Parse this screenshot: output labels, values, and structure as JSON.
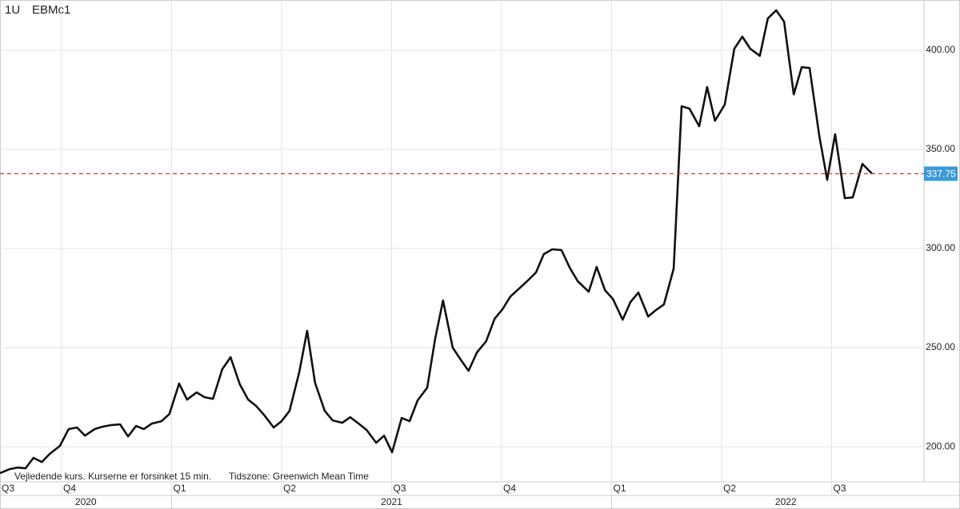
{
  "chart_data": {
    "type": "line",
    "interval": "1U",
    "symbol": "EBMc1",
    "notes": [
      "Vejledende kurs. Kurserne er forsinket 15 min.",
      "Tidszone: Greenwich Mean Time"
    ],
    "x": [
      2020.61,
      2020.632,
      2020.65,
      2020.668,
      2020.686,
      2020.705,
      2020.723,
      2020.746,
      2020.766,
      2020.785,
      2020.803,
      2020.825,
      2020.843,
      2020.861,
      2020.883,
      2020.901,
      2020.919,
      2020.937,
      2020.955,
      2020.977,
      2020.995,
      2021.017,
      2021.035,
      2021.057,
      2021.075,
      2021.094,
      2021.115,
      2021.134,
      2021.155,
      2021.174,
      2021.192,
      2021.21,
      2021.232,
      2021.25,
      2021.268,
      2021.29,
      2021.308,
      2021.326,
      2021.348,
      2021.366,
      2021.388,
      2021.406,
      2021.425,
      2021.443,
      2021.465,
      2021.483,
      2021.501,
      2021.523,
      2021.541,
      2021.559,
      2021.581,
      2021.599,
      2021.617,
      2021.639,
      2021.657,
      2021.675,
      2021.694,
      2021.715,
      2021.734,
      2021.752,
      2021.77,
      2021.788,
      2021.806,
      2021.828,
      2021.846,
      2021.865,
      2021.886,
      2021.905,
      2021.923,
      2021.948,
      2021.966,
      2021.985,
      2022.003,
      2022.025,
      2022.043,
      2022.061,
      2022.083,
      2022.101,
      2022.119,
      2022.141,
      2022.159,
      2022.177,
      2022.199,
      2022.217,
      2022.235,
      2022.257,
      2022.279,
      2022.297,
      2022.315,
      2022.337,
      2022.355,
      2022.374,
      2022.392,
      2022.414,
      2022.432,
      2022.45,
      2022.472,
      2022.49,
      2022.508,
      2022.53,
      2022.548,
      2022.57,
      2022.592
    ],
    "series": [
      {
        "color": "#111111",
        "values": [
          186.7,
          188.7,
          189.5,
          189.1,
          194.4,
          192.3,
          196.4,
          200.4,
          208.9,
          209.7,
          205.6,
          208.9,
          210.1,
          210.9,
          211.3,
          205.2,
          210.5,
          208.9,
          211.7,
          212.9,
          216.5,
          231.9,
          223.8,
          227.4,
          225.0,
          224.2,
          239.1,
          245.2,
          231.5,
          223.8,
          220.6,
          216.1,
          209.7,
          212.9,
          218.1,
          237.5,
          258.5,
          232.3,
          218.1,
          213.3,
          212.1,
          214.9,
          211.7,
          208.5,
          202.0,
          205.6,
          197.2,
          214.5,
          212.9,
          223.4,
          229.8,
          254.4,
          273.8,
          250.0,
          244.0,
          238.3,
          247.6,
          253.2,
          264.5,
          269.4,
          275.8,
          279.4,
          283.1,
          287.9,
          297.2,
          299.6,
          299.2,
          290.3,
          283.5,
          278.2,
          290.7,
          279.0,
          274.6,
          264.1,
          273.0,
          277.8,
          265.7,
          269.0,
          271.8,
          289.9,
          371.8,
          370.6,
          361.7,
          381.5,
          364.5,
          372.6,
          400.8,
          406.9,
          400.8,
          397.2,
          416.1,
          420.2,
          414.5,
          377.8,
          391.5,
          391.1,
          356.9,
          334.7,
          357.7,
          325.4,
          325.8,
          342.7,
          337.75
        ]
      }
    ],
    "last_value": 337.75,
    "last_color": "#d9342b",
    "last_label_color": "#3a9ad9",
    "xlim": [
      2020.61,
      2022.71
    ],
    "xticks": [
      {
        "value": 2020.5,
        "label": "Q3"
      },
      {
        "value": 2020.75,
        "label": "Q4"
      },
      {
        "value": 2021,
        "label": "Q1"
      },
      {
        "value": 2021.25,
        "label": "Q2"
      },
      {
        "value": 2021.5,
        "label": "Q3"
      },
      {
        "value": 2021.75,
        "label": "Q4"
      },
      {
        "value": 2022,
        "label": "Q1"
      },
      {
        "value": 2022.25,
        "label": "Q2"
      },
      {
        "value": 2022.5,
        "label": "Q3"
      }
    ],
    "year_ticks": [
      2020,
      2021,
      2022
    ],
    "ylim": [
      182.3,
      425.4
    ],
    "yticks": [
      {
        "value": 200,
        "label": "200.00"
      },
      {
        "value": 250,
        "label": "250.00"
      },
      {
        "value": 300,
        "label": "300.00"
      },
      {
        "value": 350,
        "label": "350.00"
      },
      {
        "value": 400,
        "label": "400.00"
      }
    ],
    "grid": true
  }
}
